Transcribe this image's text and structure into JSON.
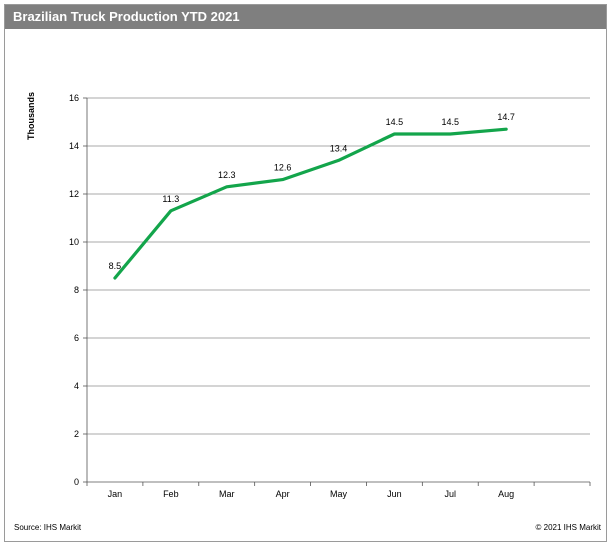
{
  "title": "Brazilian Truck Production YTD 2021",
  "source": "Source: IHS Markit",
  "copyright": "© 2021 IHS Markit",
  "colors": {
    "line": "#13a54b",
    "title_bar": "#7f7f7f",
    "grid": "#8c8c8c"
  },
  "chart_data": {
    "type": "line",
    "title": "Brazilian Truck Production YTD 2021",
    "xlabel": "",
    "ylabel": "Thousands",
    "categories": [
      "Jan",
      "Feb",
      "Mar",
      "Apr",
      "May",
      "Jun",
      "Jul",
      "Aug"
    ],
    "series": [
      {
        "values": [
          8.5,
          11.3,
          12.3,
          12.6,
          13.4,
          14.5,
          14.5,
          14.7
        ]
      }
    ],
    "data_labels": [
      "8.5",
      "11.3",
      "12.3",
      "12.6",
      "13.4",
      "14.5",
      "14.5",
      "14.7"
    ],
    "ylim": [
      0,
      16
    ],
    "yticks": [
      0,
      2,
      4,
      6,
      8,
      10,
      12,
      14,
      16
    ],
    "grid": true,
    "legend": "none"
  }
}
